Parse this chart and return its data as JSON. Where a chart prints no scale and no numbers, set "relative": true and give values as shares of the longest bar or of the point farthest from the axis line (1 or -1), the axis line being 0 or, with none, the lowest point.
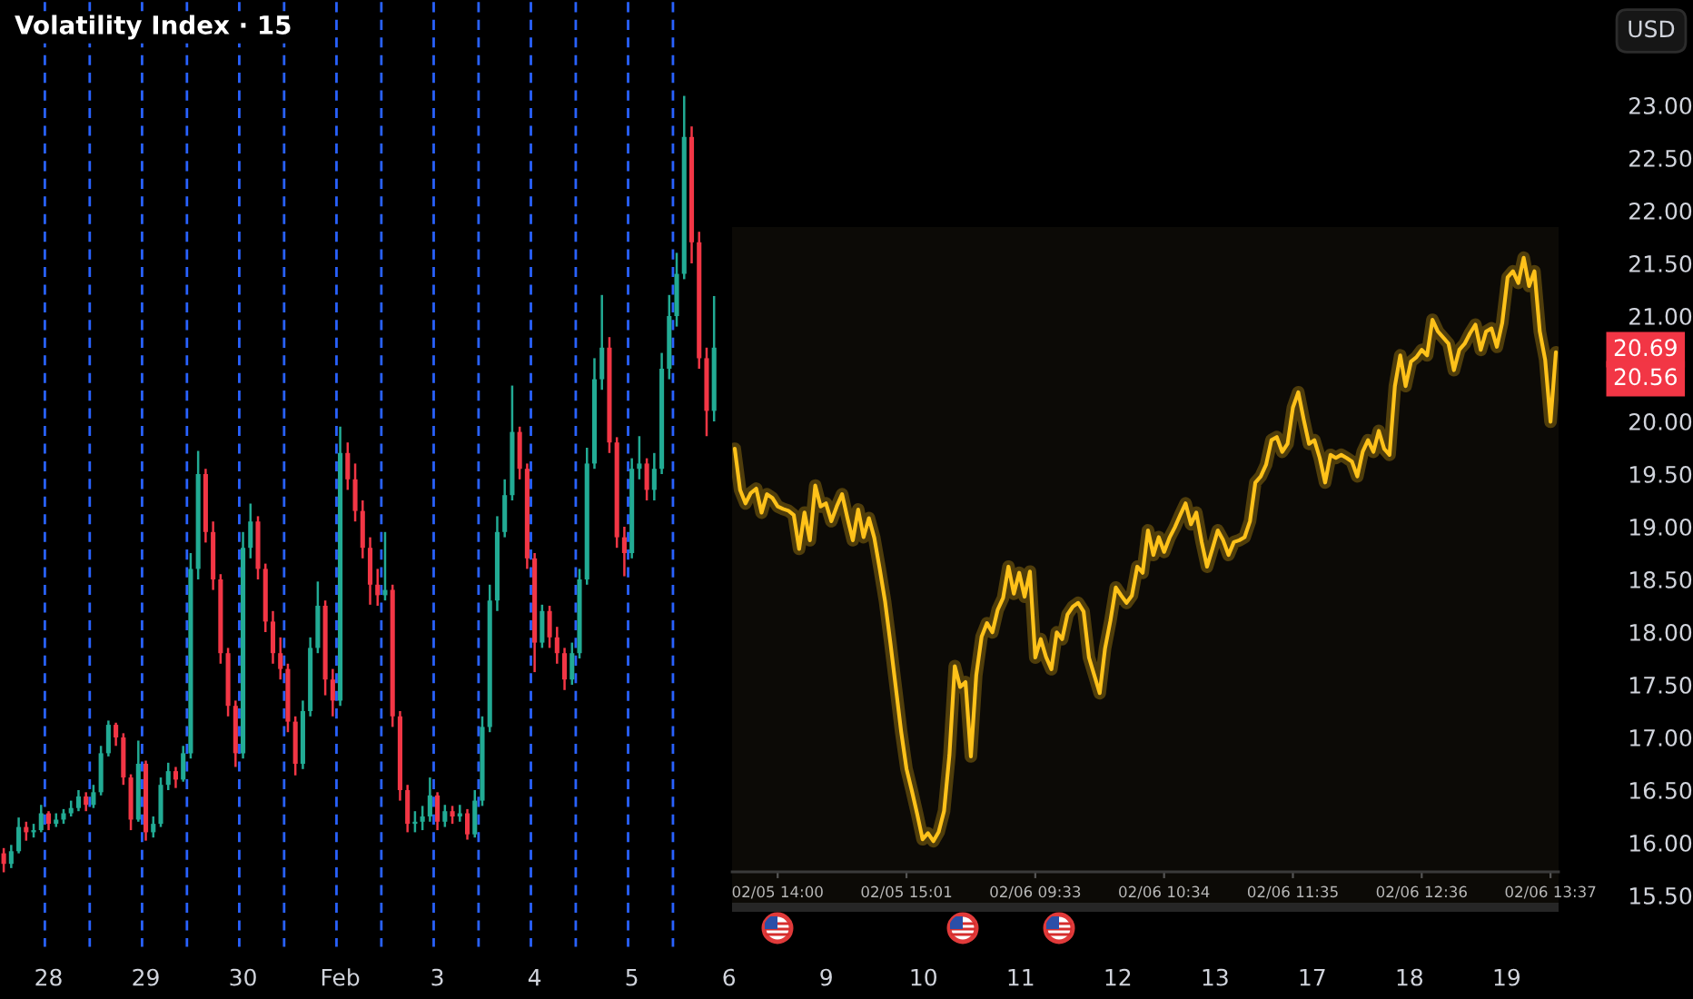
{
  "chart_data": [
    {
      "type": "candlestick",
      "title": "Volatility Index · 15",
      "categories": [
        null,
        null,
        null,
        null,
        null,
        null,
        "28",
        null,
        null,
        null,
        null,
        null,
        null,
        null,
        null,
        null,
        null,
        null,
        null,
        "29",
        null,
        null,
        null,
        null,
        null,
        null,
        null,
        null,
        null,
        null,
        null,
        null,
        "30",
        null,
        null,
        null,
        null,
        null,
        null,
        null,
        null,
        null,
        null,
        null,
        null,
        "Feb",
        null,
        null,
        null,
        null,
        null,
        null,
        null,
        null,
        null,
        null,
        null,
        null,
        "3",
        null,
        null,
        null,
        null,
        null,
        null,
        null,
        null,
        null,
        null,
        null,
        null,
        "4",
        null,
        null,
        null,
        null,
        null,
        null,
        null,
        null,
        null,
        null,
        null,
        null,
        "5",
        null,
        null,
        null,
        null,
        null,
        null,
        null,
        null,
        null,
        null,
        null,
        null,
        "6",
        null,
        null,
        null,
        null,
        null,
        null,
        null,
        null,
        null,
        null,
        null,
        null,
        "9",
        null,
        null,
        null,
        null,
        null,
        null,
        null,
        null,
        null,
        null,
        null,
        null,
        "10",
        null,
        null,
        null,
        null,
        null,
        null,
        null,
        null,
        null,
        null,
        null,
        null,
        "11",
        null,
        null,
        null,
        null,
        null,
        null,
        null,
        null,
        null,
        null,
        null,
        null,
        "12",
        null,
        null,
        null,
        null,
        null,
        null,
        null,
        null,
        null,
        null,
        null,
        null,
        "13",
        null,
        null,
        null,
        null,
        null,
        null,
        null,
        null,
        null,
        null,
        null,
        null,
        "17",
        null,
        null,
        null,
        null,
        null,
        null,
        null,
        null,
        null,
        null,
        null,
        null,
        "18",
        null,
        null,
        null,
        null,
        null,
        null,
        null,
        null,
        null,
        null,
        null,
        null,
        "19",
        null,
        null,
        null,
        null,
        null,
        null,
        null,
        null,
        null,
        null,
        null,
        null,
        null
      ],
      "ohlc": [
        [
          15.9,
          15.95,
          15.72,
          15.8
        ],
        [
          15.8,
          15.98,
          15.76,
          15.92
        ],
        [
          15.92,
          16.24,
          15.9,
          16.15
        ],
        [
          16.15,
          16.2,
          16.02,
          16.1
        ],
        [
          16.1,
          16.18,
          16.05,
          16.12
        ],
        [
          16.12,
          16.36,
          16.1,
          16.28
        ],
        [
          16.28,
          16.3,
          16.12,
          16.18
        ],
        [
          16.18,
          16.28,
          16.15,
          16.22
        ],
        [
          16.22,
          16.32,
          16.18,
          16.28
        ],
        [
          16.28,
          16.4,
          16.25,
          16.33
        ],
        [
          16.33,
          16.5,
          16.3,
          16.44
        ],
        [
          16.44,
          16.48,
          16.3,
          16.36
        ],
        [
          16.36,
          16.55,
          16.33,
          16.48
        ],
        [
          16.48,
          16.92,
          16.45,
          16.85
        ],
        [
          16.85,
          17.16,
          16.82,
          17.12
        ],
        [
          17.12,
          17.14,
          16.92,
          17.0
        ],
        [
          17.0,
          17.04,
          16.55,
          16.62
        ],
        [
          16.62,
          16.65,
          16.12,
          16.22
        ],
        [
          16.22,
          16.97,
          16.2,
          16.75
        ],
        [
          16.75,
          16.78,
          16.02,
          16.1
        ],
        [
          16.1,
          16.25,
          16.05,
          16.18
        ],
        [
          16.18,
          16.62,
          16.15,
          16.55
        ],
        [
          16.55,
          16.76,
          16.5,
          16.68
        ],
        [
          16.68,
          16.72,
          16.52,
          16.6
        ],
        [
          16.6,
          16.92,
          16.58,
          16.85
        ],
        [
          16.85,
          18.75,
          16.8,
          18.6
        ],
        [
          18.6,
          19.72,
          18.5,
          19.5
        ],
        [
          19.5,
          19.55,
          18.85,
          18.95
        ],
        [
          18.95,
          19.05,
          18.4,
          18.5
        ],
        [
          18.5,
          18.55,
          17.7,
          17.8
        ],
        [
          17.8,
          17.85,
          17.2,
          17.3
        ],
        [
          17.3,
          17.35,
          16.72,
          16.85
        ],
        [
          16.85,
          18.95,
          16.8,
          18.8
        ],
        [
          18.8,
          19.22,
          18.7,
          19.05
        ],
        [
          19.05,
          19.1,
          18.5,
          18.6
        ],
        [
          18.6,
          18.65,
          18.0,
          18.1
        ],
        [
          18.1,
          18.2,
          17.7,
          17.8
        ],
        [
          17.8,
          17.95,
          17.55,
          17.65
        ],
        [
          17.65,
          17.7,
          17.05,
          17.15
        ],
        [
          17.15,
          17.2,
          16.64,
          16.75
        ],
        [
          16.75,
          17.35,
          16.7,
          17.25
        ],
        [
          17.25,
          17.95,
          17.2,
          17.85
        ],
        [
          17.85,
          18.48,
          17.8,
          18.25
        ],
        [
          18.25,
          18.3,
          17.4,
          17.55
        ],
        [
          17.55,
          17.65,
          17.2,
          17.35
        ],
        [
          17.35,
          19.95,
          17.3,
          19.7
        ],
        [
          19.7,
          19.8,
          19.35,
          19.45
        ],
        [
          19.45,
          19.6,
          19.05,
          19.15
        ],
        [
          19.15,
          19.25,
          18.7,
          18.8
        ],
        [
          18.8,
          18.9,
          18.26,
          18.45
        ],
        [
          18.45,
          18.6,
          18.25,
          18.35
        ],
        [
          18.35,
          18.95,
          18.3,
          18.4
        ],
        [
          18.4,
          18.45,
          17.1,
          17.2
        ],
        [
          17.2,
          17.25,
          16.4,
          16.5
        ],
        [
          16.5,
          16.55,
          16.1,
          16.18
        ],
        [
          16.18,
          16.3,
          16.1,
          16.2
        ],
        [
          16.2,
          16.35,
          16.12,
          16.25
        ],
        [
          16.25,
          16.62,
          16.2,
          16.45
        ],
        [
          16.45,
          16.48,
          16.12,
          16.2
        ],
        [
          16.2,
          16.36,
          16.15,
          16.3
        ],
        [
          16.3,
          16.35,
          16.18,
          16.25
        ],
        [
          16.25,
          16.36,
          16.2,
          16.28
        ],
        [
          16.28,
          16.32,
          16.03,
          16.08
        ],
        [
          16.08,
          16.5,
          16.05,
          16.4
        ],
        [
          16.4,
          17.2,
          16.35,
          17.1
        ],
        [
          17.1,
          18.45,
          17.05,
          18.3
        ],
        [
          18.3,
          19.1,
          18.2,
          18.95
        ],
        [
          18.95,
          19.45,
          18.9,
          19.3
        ],
        [
          19.3,
          20.34,
          19.25,
          19.9
        ],
        [
          19.9,
          19.95,
          19.45,
          19.55
        ],
        [
          19.55,
          19.6,
          18.6,
          18.7
        ],
        [
          18.7,
          18.75,
          17.62,
          17.9
        ],
        [
          17.9,
          18.26,
          17.85,
          18.2
        ],
        [
          18.2,
          18.25,
          17.85,
          17.95
        ],
        [
          17.95,
          18.05,
          17.7,
          17.8
        ],
        [
          17.8,
          17.85,
          17.45,
          17.55
        ],
        [
          17.55,
          17.9,
          17.5,
          17.8
        ],
        [
          17.8,
          18.6,
          17.75,
          18.5
        ],
        [
          18.5,
          19.75,
          18.45,
          19.6
        ],
        [
          19.6,
          20.6,
          19.55,
          20.4
        ],
        [
          20.4,
          21.2,
          20.3,
          20.7
        ],
        [
          20.7,
          20.8,
          19.7,
          19.8
        ],
        [
          19.8,
          19.85,
          18.8,
          18.9
        ],
        [
          18.9,
          19.0,
          18.53,
          18.75
        ],
        [
          18.75,
          19.65,
          18.7,
          19.55
        ],
        [
          19.55,
          19.86,
          19.45,
          19.6
        ],
        [
          19.6,
          19.65,
          19.25,
          19.35
        ],
        [
          19.35,
          19.7,
          19.25,
          19.55
        ],
        [
          19.55,
          20.65,
          19.5,
          20.5
        ],
        [
          20.5,
          21.2,
          20.4,
          21.0
        ],
        [
          21.0,
          21.6,
          20.9,
          21.4
        ],
        [
          21.4,
          23.09,
          21.35,
          22.7
        ],
        [
          22.7,
          22.8,
          21.5,
          21.7
        ],
        [
          21.7,
          21.8,
          20.5,
          20.6
        ],
        [
          20.6,
          20.7,
          19.86,
          20.1
        ],
        [
          20.1,
          21.19,
          20.0,
          20.7
        ],
        null,
        null,
        null,
        null,
        null,
        null,
        null,
        null,
        null,
        null,
        null,
        null,
        null,
        null,
        null,
        null,
        null,
        null,
        null,
        null,
        null,
        null,
        null,
        null,
        null,
        null,
        null,
        null,
        null,
        null,
        null,
        null,
        null,
        null,
        null,
        null,
        null,
        null,
        null,
        null,
        null,
        null,
        null,
        null,
        null,
        null,
        null,
        null,
        null,
        null,
        null,
        null,
        null,
        null,
        null,
        null,
        null,
        null,
        null,
        null,
        null,
        null,
        null,
        null,
        null,
        null,
        null,
        null,
        null,
        null,
        null,
        null,
        null,
        null,
        null,
        null,
        null,
        null,
        null,
        null,
        null,
        null,
        null,
        null,
        null,
        null,
        null,
        null,
        null,
        null,
        null,
        null,
        null,
        null,
        null,
        null,
        null,
        null,
        null,
        null,
        null,
        null,
        null,
        null,
        null,
        null,
        null,
        null,
        null,
        null,
        null,
        null,
        null,
        null,
        null,
        null,
        null,
        null,
        null
      ],
      "colors": [
        "#f23645",
        "#22ab94",
        "#22ab94",
        "#f23645",
        "#22ab94",
        "#22ab94",
        "#f23645",
        "#22ab94",
        "#22ab94",
        "#22ab94",
        "#22ab94",
        "#f23645",
        "#22ab94",
        "#22ab94",
        "#22ab94",
        "#f23645",
        "#f23645",
        "#f23645",
        "#22ab94",
        "#f23645",
        "#22ab94",
        "#22ab94",
        "#22ab94",
        "#f23645",
        "#22ab94",
        "#22ab94",
        "#22ab94",
        "#f23645",
        "#f23645",
        "#f23645",
        "#f23645",
        "#f23645",
        "#22ab94",
        "#22ab94",
        "#f23645",
        "#f23645",
        "#f23645",
        "#f23645",
        "#f23645",
        "#f23645",
        "#22ab94",
        "#22ab94",
        "#22ab94",
        "#f23645",
        "#f23645",
        "#22ab94",
        "#f23645",
        "#f23645",
        "#f23645",
        "#f23645",
        "#f23645",
        "#22ab94",
        "#f23645",
        "#f23645",
        "#f23645",
        "#22ab94",
        "#22ab94",
        "#22ab94",
        "#f23645",
        "#22ab94",
        "#f23645",
        "#22ab94",
        "#f23645",
        "#22ab94",
        "#22ab94",
        "#22ab94",
        "#22ab94",
        "#22ab94",
        "#22ab94",
        "#f23645",
        "#f23645",
        "#f23645",
        "#22ab94",
        "#f23645",
        "#f23645",
        "#f23645",
        "#22ab94",
        "#22ab94",
        "#22ab94",
        "#22ab94",
        "#22ab94",
        "#f23645",
        "#f23645",
        "#f23645",
        "#22ab94",
        "#22ab94",
        "#f23645",
        "#22ab94",
        "#22ab94",
        "#22ab94",
        "#22ab94",
        "#22ab94",
        "#f23645",
        "#f23645",
        "#f23645",
        "#22ab94",
        null,
        null,
        null,
        null,
        null,
        null,
        null,
        null,
        null,
        null,
        null,
        null,
        null,
        null,
        null,
        null,
        null,
        null,
        null,
        null,
        null,
        null,
        null,
        null,
        null,
        null,
        null,
        null,
        null,
        null,
        null,
        null,
        null,
        null,
        null,
        null,
        null,
        null,
        null,
        null,
        null,
        null,
        null,
        null,
        null,
        null,
        null,
        null,
        null,
        null,
        null,
        null,
        null,
        null,
        null,
        null,
        null,
        null,
        null,
        null,
        null,
        null,
        null,
        null,
        null,
        null,
        null,
        null,
        null,
        null,
        null,
        null,
        null,
        null,
        null,
        null,
        null,
        null,
        null,
        null,
        null,
        null,
        null,
        null,
        null,
        null,
        null,
        null,
        null,
        null,
        null,
        null,
        null,
        null,
        null,
        null,
        null,
        null,
        null,
        null,
        null,
        null,
        null,
        null,
        null,
        null,
        null,
        null,
        null,
        null,
        null,
        null,
        null,
        null,
        null,
        null,
        null,
        null,
        null
      ],
      "ylim": [
        15.0,
        24.0
      ],
      "yticks": [
        {
          "value": 15.5,
          "label": "15.50"
        },
        {
          "value": 16,
          "label": "16.00"
        },
        {
          "value": 16.5,
          "label": "16.50"
        },
        {
          "value": 17,
          "label": "17.00"
        },
        {
          "value": 17.5,
          "label": "17.50"
        },
        {
          "value": 18,
          "label": "18.00"
        },
        {
          "value": 18.5,
          "label": "18.50"
        },
        {
          "value": 19,
          "label": "19.00"
        },
        {
          "value": 19.5,
          "label": "19.50"
        },
        {
          "value": 20,
          "label": "20.00"
        },
        {
          "value": 21,
          "label": "21.00"
        },
        {
          "value": 21.5,
          "label": "21.50"
        },
        {
          "value": 22,
          "label": "22.00"
        },
        {
          "value": 22.5,
          "label": "22.50"
        },
        {
          "value": 23,
          "label": "23.00"
        }
      ],
      "annotations": [
        "USD",
        "20.69",
        "20.56"
      ]
    },
    {
      "type": "line",
      "relative": true,
      "categories": [
        null,
        null,
        null,
        null,
        null,
        null,
        null,
        null,
        "02/05 14:00",
        null,
        null,
        null,
        null,
        null,
        null,
        null,
        null,
        null,
        null,
        null,
        null,
        null,
        null,
        null,
        null,
        null,
        null,
        null,
        null,
        null,
        null,
        null,
        "02/05 15:01",
        null,
        null,
        null,
        null,
        null,
        null,
        null,
        null,
        null,
        null,
        null,
        null,
        null,
        null,
        null,
        null,
        null,
        null,
        null,
        null,
        null,
        null,
        null,
        "02/06 09:33",
        null,
        null,
        null,
        null,
        null,
        null,
        null,
        null,
        null,
        null,
        null,
        null,
        null,
        null,
        null,
        null,
        null,
        null,
        null,
        null,
        null,
        null,
        null,
        "02/06 10:34",
        null,
        null,
        null,
        null,
        null,
        null,
        null,
        null,
        null,
        null,
        null,
        null,
        null,
        null,
        null,
        null,
        null,
        null,
        null,
        null,
        null,
        null,
        null,
        "02/06 11:35",
        null,
        null,
        null,
        null,
        null,
        null,
        null,
        null,
        null,
        null,
        null,
        null,
        null,
        null,
        null,
        null,
        null,
        null,
        null,
        null,
        null,
        null,
        null,
        "02/06 12:36",
        null,
        null,
        null,
        null,
        null,
        null,
        null,
        null,
        null,
        null,
        null,
        null,
        null,
        null,
        null,
        null,
        null,
        null,
        null,
        null,
        null,
        null,
        null,
        "02/06 13:37",
        null
      ],
      "series": [
        {
          "color": "#ffc21a",
          "values": [
            0.689,
            0.622,
            0.6,
            0.617,
            0.624,
            0.585,
            0.615,
            0.609,
            0.595,
            0.591,
            0.588,
            0.581,
            0.526,
            0.585,
            0.54,
            0.629,
            0.595,
            0.6,
            0.571,
            0.595,
            0.615,
            0.576,
            0.54,
            0.59,
            0.545,
            0.576,
            0.544,
            0.494,
            0.441,
            0.373,
            0.301,
            0.229,
            0.168,
            0.132,
            0.094,
            0.053,
            0.063,
            0.05,
            0.065,
            0.099,
            0.19,
            0.335,
            0.301,
            0.309,
            0.188,
            0.32,
            0.383,
            0.405,
            0.39,
            0.427,
            0.446,
            0.497,
            0.453,
            0.487,
            0.448,
            0.489,
            0.349,
            0.379,
            0.35,
            0.33,
            0.39,
            0.379,
            0.419,
            0.432,
            0.438,
            0.424,
            0.349,
            0.32,
            0.291,
            0.364,
            0.409,
            0.463,
            0.45,
            0.438,
            0.45,
            0.497,
            0.487,
            0.556,
            0.516,
            0.545,
            0.521,
            0.544,
            0.561,
            0.581,
            0.6,
            0.566,
            0.585,
            0.537,
            0.497,
            0.526,
            0.556,
            0.54,
            0.516,
            0.537,
            0.54,
            0.545,
            0.571,
            0.634,
            0.644,
            0.663,
            0.703,
            0.708,
            0.684,
            0.697,
            0.756,
            0.781,
            0.737,
            0.697,
            0.703,
            0.674,
            0.634,
            0.679,
            0.674,
            0.679,
            0.674,
            0.668,
            0.644,
            0.684,
            0.703,
            0.684,
            0.718,
            0.689,
            0.679,
            0.791,
            0.841,
            0.791,
            0.831,
            0.838,
            0.85,
            0.841,
            0.899,
            0.88,
            0.87,
            0.86,
            0.817,
            0.85,
            0.86,
            0.877,
            0.891,
            0.85,
            0.88,
            0.885,
            0.855,
            0.894,
            0.968,
            0.978,
            0.959,
            1.0,
            0.954,
            0.978,
            0.88,
            0.834,
            0.733,
            0.846
          ]
        }
      ],
      "tick_labels": "x"
    }
  ]
}
